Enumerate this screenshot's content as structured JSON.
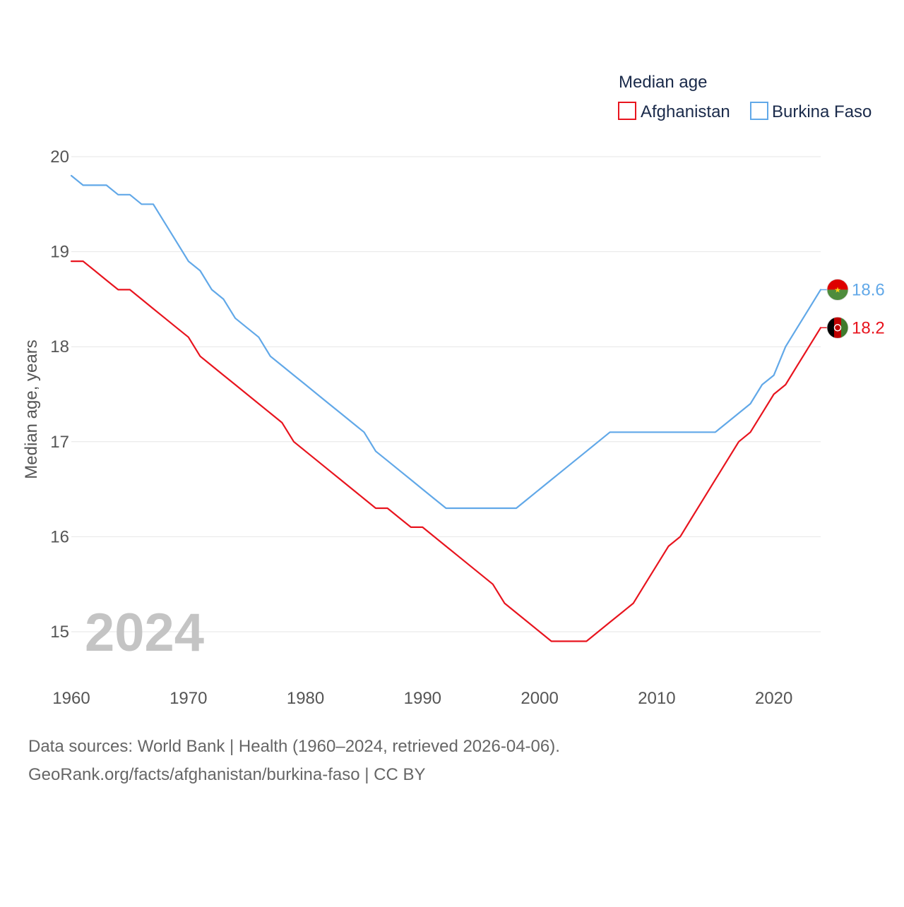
{
  "chart_data": {
    "type": "line",
    "legend_title": "Median age",
    "legend_position": "top-right",
    "ylabel": "Median age, years",
    "xlabel": "",
    "year_label": "2024",
    "xlim": [
      1960,
      2024
    ],
    "ylim": [
      14.5,
      20.3
    ],
    "x_ticks": [
      1960,
      1970,
      1980,
      1990,
      2000,
      2010,
      2020
    ],
    "y_ticks": [
      15,
      16,
      17,
      18,
      19,
      20
    ],
    "grid": true,
    "x": [
      1960,
      1961,
      1962,
      1963,
      1964,
      1965,
      1966,
      1967,
      1968,
      1969,
      1970,
      1971,
      1972,
      1973,
      1974,
      1975,
      1976,
      1977,
      1978,
      1979,
      1980,
      1981,
      1982,
      1983,
      1984,
      1985,
      1986,
      1987,
      1988,
      1989,
      1990,
      1991,
      1992,
      1993,
      1994,
      1995,
      1996,
      1997,
      1998,
      1999,
      2000,
      2001,
      2002,
      2003,
      2004,
      2005,
      2006,
      2007,
      2008,
      2009,
      2010,
      2011,
      2012,
      2013,
      2014,
      2015,
      2016,
      2017,
      2018,
      2019,
      2020,
      2021,
      2022,
      2023,
      2024
    ],
    "series": [
      {
        "name": "Afghanistan",
        "color": "#e8141e",
        "end_label": "18.2",
        "flag_icon": "afghanistan-flag-icon",
        "values": [
          18.9,
          18.9,
          18.8,
          18.7,
          18.6,
          18.6,
          18.5,
          18.4,
          18.3,
          18.2,
          18.1,
          17.9,
          17.8,
          17.7,
          17.6,
          17.5,
          17.4,
          17.3,
          17.2,
          17.0,
          16.9,
          16.8,
          16.7,
          16.6,
          16.5,
          16.4,
          16.3,
          16.3,
          16.2,
          16.1,
          16.1,
          16.0,
          15.9,
          15.8,
          15.7,
          15.6,
          15.5,
          15.3,
          15.2,
          15.1,
          15.0,
          14.9,
          14.9,
          14.9,
          14.9,
          15.0,
          15.1,
          15.2,
          15.3,
          15.5,
          15.7,
          15.9,
          16.0,
          16.2,
          16.4,
          16.6,
          16.8,
          17.0,
          17.1,
          17.3,
          17.5,
          17.6,
          17.8,
          18.0,
          18.2
        ]
      },
      {
        "name": "Burkina Faso",
        "color": "#61a8e8",
        "end_label": "18.6",
        "flag_icon": "burkina-faso-flag-icon",
        "values": [
          19.8,
          19.7,
          19.7,
          19.7,
          19.6,
          19.6,
          19.5,
          19.5,
          19.3,
          19.1,
          18.9,
          18.8,
          18.6,
          18.5,
          18.3,
          18.2,
          18.1,
          17.9,
          17.8,
          17.7,
          17.6,
          17.5,
          17.4,
          17.3,
          17.2,
          17.1,
          16.9,
          16.8,
          16.7,
          16.6,
          16.5,
          16.4,
          16.3,
          16.3,
          16.3,
          16.3,
          16.3,
          16.3,
          16.3,
          16.4,
          16.5,
          16.6,
          16.7,
          16.8,
          16.9,
          17.0,
          17.1,
          17.1,
          17.1,
          17.1,
          17.1,
          17.1,
          17.1,
          17.1,
          17.1,
          17.1,
          17.2,
          17.3,
          17.4,
          17.6,
          17.7,
          18.0,
          18.2,
          18.4,
          18.6
        ]
      }
    ]
  },
  "footer": {
    "source_line_1": "Data sources: World Bank | Health (1960–2024, retrieved 2026-04-06).",
    "source_line_2": "GeoRank.org/facts/afghanistan/burkina-faso | CC BY"
  },
  "colors": {
    "axis_text": "#555555",
    "legend_text": "#1a2a4a",
    "grid": "#e6e6e6",
    "year_watermark": "#c4c4c4",
    "flag_red": "#de0000",
    "flag_green": "#4e8c3c",
    "flag_black": "#000000",
    "flag_yellow": "#fcd116",
    "afg_red": "#be0000",
    "afg_green": "#3f7a2c"
  }
}
